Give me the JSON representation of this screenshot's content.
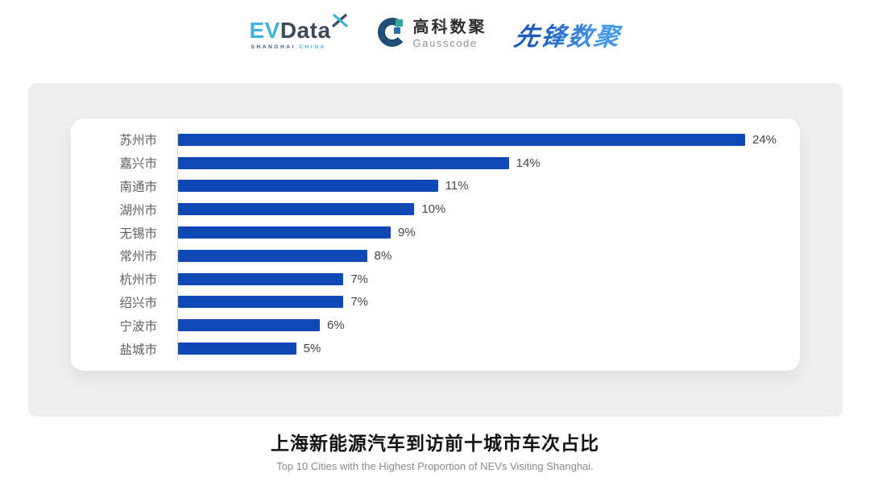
{
  "header": {
    "logos": {
      "evdata": {
        "ev": "EV",
        "data": "Data",
        "sub_left": "SHANGHAI",
        "sub_right": "CHINA"
      },
      "gausscode": {
        "cn": "高科数聚",
        "en": "Gausscode"
      },
      "xianfeng": {
        "text": "先锋数聚"
      }
    }
  },
  "chart_data": {
    "type": "bar",
    "orientation": "horizontal",
    "categories": [
      "苏州市",
      "嘉兴市",
      "南通市",
      "湖州市",
      "无锡市",
      "常州市",
      "杭州市",
      "绍兴市",
      "宁波市",
      "盐城市"
    ],
    "values": [
      24,
      14,
      11,
      10,
      9,
      8,
      7,
      7,
      6,
      5
    ],
    "value_labels": [
      "24%",
      "14%",
      "11%",
      "10%",
      "9%",
      "8%",
      "7%",
      "7%",
      "6%",
      "5%"
    ],
    "title": "上海新能源汽车到访前十城市车次占比",
    "subtitle": "Top 10 Cities with the Highest Proportion of  NEVs Visiting Shanghai.",
    "xlim": [
      0,
      24
    ],
    "grid": false,
    "legend": false,
    "colors": {
      "bar": "#1149b4",
      "axis_line": "#d9d9d9",
      "category_label": "#5f5f5f",
      "value_label": "#454545"
    }
  }
}
